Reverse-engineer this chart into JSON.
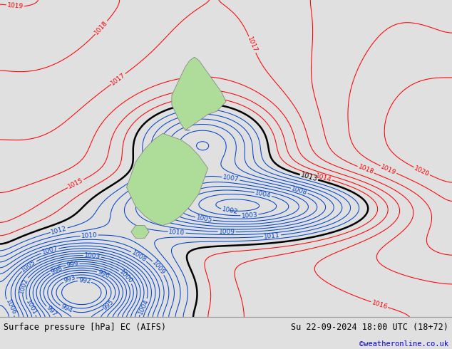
{
  "title_left": "Surface pressure [hPa] EC (AIFS)",
  "title_right": "Su 22-09-2024 18:00 UTC (18+72)",
  "credit": "©weatheronline.co.uk",
  "bg_color": "#e0e0e0",
  "land_color": "#aedd9a",
  "red_isobar_color": "#ff0000",
  "blue_isobar_color": "#0044cc",
  "black_isobar_color": "#000000",
  "font_size_labels": 6.5,
  "font_size_bottom": 8.5,
  "font_size_credit": 7.5
}
